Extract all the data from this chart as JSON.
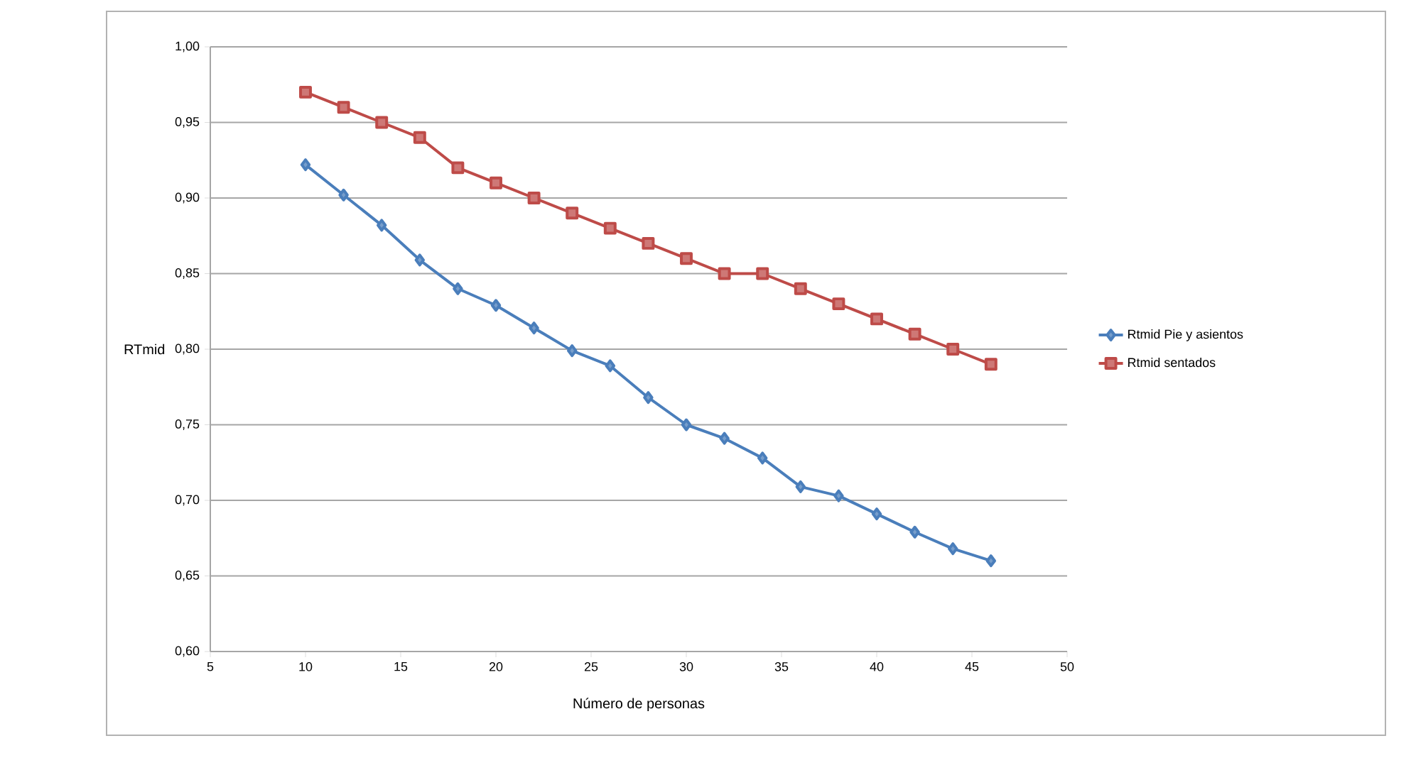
{
  "chart_data": {
    "type": "line",
    "xlabel": "Número de personas",
    "ylabel": "RTmid",
    "x": [
      10,
      12,
      14,
      16,
      18,
      20,
      22,
      24,
      26,
      28,
      30,
      32,
      34,
      36,
      38,
      40,
      42,
      44,
      46
    ],
    "series": [
      {
        "name": "Rtmid Pie y asientos",
        "color": "#4a7ebb",
        "marker": "diamond",
        "values": [
          0.922,
          0.902,
          0.882,
          0.859,
          0.84,
          0.829,
          0.814,
          0.799,
          0.789,
          0.768,
          0.75,
          0.741,
          0.728,
          0.709,
          0.703,
          0.691,
          0.679,
          0.668,
          0.66
        ]
      },
      {
        "name": "Rtmid sentados",
        "color": "#be4b48",
        "marker": "square",
        "values": [
          0.97,
          0.96,
          0.95,
          0.94,
          0.92,
          0.91,
          0.9,
          0.89,
          0.88,
          0.87,
          0.86,
          0.85,
          0.85,
          0.84,
          0.83,
          0.82,
          0.81,
          0.8,
          0.79
        ]
      }
    ],
    "xlim": [
      5,
      50
    ],
    "xticks": [
      5,
      10,
      15,
      20,
      25,
      30,
      35,
      40,
      45,
      50
    ],
    "ylim": [
      0.6,
      1.0
    ],
    "yticks": [
      {
        "value": 0.6,
        "label": "0,60"
      },
      {
        "value": 0.65,
        "label": "0,65"
      },
      {
        "value": 0.7,
        "label": "0,70"
      },
      {
        "value": 0.75,
        "label": "0,75"
      },
      {
        "value": 0.8,
        "label": "0,80"
      },
      {
        "value": 0.85,
        "label": "0,85"
      },
      {
        "value": 0.9,
        "label": "0,90"
      },
      {
        "value": 0.95,
        "label": "0,95"
      },
      {
        "value": 1.0,
        "label": "1,00"
      }
    ],
    "grid": "y",
    "legend": "right",
    "line_style": "solid"
  }
}
